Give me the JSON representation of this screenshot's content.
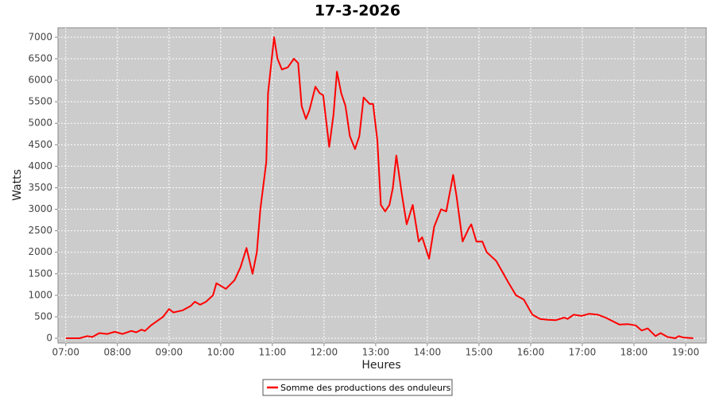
{
  "chart_data": {
    "type": "line",
    "title": "17-3-2026",
    "x_label": "Heures",
    "y_label": "Watts",
    "x": [
      "07:00",
      "07:16",
      "07:25",
      "07:31",
      "07:39",
      "07:48",
      "07:57",
      "08:06",
      "08:16",
      "08:22",
      "08:28",
      "08:32",
      "08:39",
      "08:46",
      "08:53",
      "09:00",
      "09:05",
      "09:16",
      "09:25",
      "09:30",
      "09:36",
      "09:43",
      "09:51",
      "09:55",
      "10:06",
      "10:16",
      "10:23",
      "10:30",
      "10:37",
      "10:42",
      "10:46",
      "10:53",
      "10:55",
      "11:02",
      "11:06",
      "11:11",
      "11:18",
      "11:25",
      "11:30",
      "11:34",
      "11:39",
      "11:43",
      "11:50",
      "11:55",
      "11:59",
      "12:06",
      "12:11",
      "12:15",
      "12:20",
      "12:25",
      "12:30",
      "12:36",
      "12:41",
      "12:46",
      "12:53",
      "12:57",
      "13:02",
      "13:06",
      "13:11",
      "13:16",
      "13:20",
      "13:24",
      "13:30",
      "13:36",
      "13:43",
      "13:50",
      "13:54",
      "14:02",
      "14:08",
      "14:16",
      "14:22",
      "14:30",
      "14:34",
      "14:41",
      "14:48",
      "14:51",
      "14:57",
      "15:04",
      "15:09",
      "15:20",
      "15:34",
      "15:43",
      "15:52",
      "16:02",
      "16:11",
      "16:20",
      "16:29",
      "16:39",
      "16:43",
      "16:50",
      "16:59",
      "17:08",
      "17:18",
      "17:27",
      "17:43",
      "17:53",
      "18:02",
      "18:09",
      "18:16",
      "18:25",
      "18:31",
      "18:39",
      "18:48",
      "18:52",
      "18:57",
      "19:09"
    ],
    "series": [
      {
        "name": "Somme des productions des onduleurs",
        "color": "#ff0000",
        "values": [
          0,
          0,
          50,
          30,
          120,
          100,
          150,
          100,
          170,
          140,
          200,
          170,
          300,
          400,
          500,
          680,
          600,
          650,
          750,
          850,
          780,
          850,
          1000,
          1280,
          1150,
          1350,
          1650,
          2100,
          1500,
          2000,
          3000,
          4100,
          5700,
          7000,
          6500,
          6250,
          6300,
          6500,
          6400,
          5400,
          5100,
          5300,
          5850,
          5700,
          5650,
          4450,
          5200,
          6200,
          5700,
          5400,
          4700,
          4400,
          4700,
          5600,
          5450,
          5450,
          4600,
          3100,
          2950,
          3100,
          3500,
          4250,
          3400,
          2650,
          3100,
          2250,
          2350,
          1850,
          2600,
          3000,
          2950,
          3800,
          3300,
          2250,
          2550,
          2650,
          2250,
          2250,
          2000,
          1800,
          1300,
          1000,
          900,
          550,
          450,
          430,
          420,
          480,
          450,
          550,
          520,
          570,
          550,
          480,
          320,
          330,
          300,
          180,
          230,
          50,
          120,
          30,
          0,
          50,
          20,
          0
        ]
      }
    ],
    "xlim": [
      "06:51",
      "19:24"
    ],
    "xticks": [
      "07:00",
      "08:00",
      "09:00",
      "10:00",
      "11:00",
      "12:00",
      "13:00",
      "14:00",
      "15:00",
      "16:00",
      "17:00",
      "18:00",
      "19:00"
    ],
    "ylim": [
      -110,
      7220
    ],
    "yticks": [
      0,
      500,
      1000,
      1500,
      2000,
      2500,
      3000,
      3500,
      4000,
      4500,
      5000,
      5500,
      6000,
      6500,
      7000
    ],
    "grid": true,
    "legend": "bottom"
  }
}
